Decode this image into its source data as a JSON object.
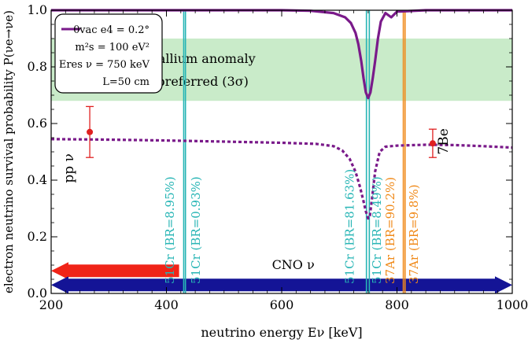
{
  "chart_data": {
    "type": "line",
    "xlabel": "neutrino energy Eν [keV]",
    "ylabel": "electron neutrino survival probability P(νe→νe)",
    "xlim": [
      200,
      1000
    ],
    "ylim": [
      0.0,
      1.0
    ],
    "x_ticks": [
      200,
      400,
      600,
      800,
      1000
    ],
    "y_ticks": [
      0.0,
      0.2,
      0.4,
      0.6,
      0.8,
      1.0
    ],
    "y_tick_labels": [
      "0.0",
      "0.2",
      "0.4",
      "0.6",
      "0.8",
      "1.0"
    ],
    "grid": false,
    "legend": {
      "placement": "top-left",
      "lines": [
        "θvac e4 = 0.2°",
        "m²s = 100 eV²",
        "Eres ν = 750 keV",
        "L=50 cm"
      ]
    },
    "band": {
      "ymin": 0.68,
      "ymax": 0.9,
      "color": "#c9ebc9",
      "label_line1": "gallium anomaly",
      "label_line2": "preferred (3σ)"
    },
    "series": [
      {
        "style": "solid",
        "color": "#7a1a8a",
        "x": [
          200,
          600,
          650,
          690,
          710,
          720,
          728,
          733,
          738,
          742,
          746,
          750,
          754,
          758,
          762,
          767,
          772,
          780,
          790,
          800,
          850,
          1000
        ],
        "y": [
          1.0,
          1.0,
          0.998,
          0.99,
          0.975,
          0.955,
          0.92,
          0.88,
          0.82,
          0.76,
          0.71,
          0.69,
          0.71,
          0.76,
          0.82,
          0.9,
          0.96,
          0.99,
          0.975,
          0.995,
          1.0,
          1.0
        ]
      },
      {
        "style": "dotted",
        "color": "#7a1a8a",
        "x": [
          200,
          300,
          400,
          500,
          600,
          660,
          690,
          705,
          718,
          728,
          736,
          742,
          746,
          750,
          753,
          757,
          762,
          770,
          780,
          800,
          850,
          900,
          950,
          1000
        ],
        "y": [
          0.545,
          0.543,
          0.54,
          0.536,
          0.532,
          0.528,
          0.52,
          0.505,
          0.475,
          0.43,
          0.375,
          0.325,
          0.29,
          0.265,
          0.275,
          0.34,
          0.43,
          0.5,
          0.518,
          0.522,
          0.525,
          0.524,
          0.52,
          0.515
        ]
      }
    ],
    "lines": [
      {
        "x": 430,
        "color": "#27b5b5",
        "label": "51Cr (BR=8.95%)",
        "label_x": 413
      },
      {
        "x": 433,
        "color": "#27b5b5",
        "label": "51Cr (BR=0.93%)",
        "label_x": 458
      },
      {
        "x": 747,
        "color": "#27b5b5",
        "label": "51Cr (BR=81.63%)",
        "label_x": 725
      },
      {
        "x": 752,
        "color": "#27b5b5",
        "label": "51Cr (BR=8.49%)",
        "label_x": 772
      },
      {
        "x": 811,
        "color": "#f08a1a",
        "label": "37Ar (BR=90.2%)",
        "label_x": 795
      },
      {
        "x": 814,
        "color": "#f08a1a",
        "label": "37Ar (BR=9.8%)",
        "label_x": 836
      }
    ],
    "points": [
      {
        "label": "pp ν",
        "x": 267,
        "y": 0.57,
        "yerr_low": 0.48,
        "yerr_high": 0.66,
        "color": "#e02020"
      },
      {
        "label": "7Be",
        "x": 862,
        "y": 0.53,
        "yerr_low": 0.48,
        "yerr_high": 0.58,
        "color": "#e02020"
      }
    ],
    "arrows": [
      {
        "label": "",
        "x_from": 422,
        "x_to": 200,
        "y": 0.08,
        "color": "#f02418"
      },
      {
        "label": "CNO ν",
        "x_from": 200,
        "x_to": 1000,
        "y": 0.03,
        "color": "#141496"
      }
    ]
  }
}
